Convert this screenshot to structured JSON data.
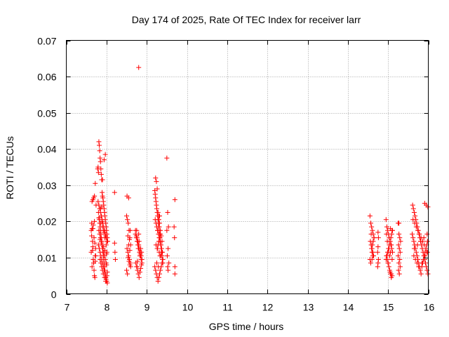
{
  "chart_data": {
    "type": "scatter",
    "title": "Day 174 of 2025, Rate Of TEC Index for receiver larr",
    "xlabel": "GPS time / hours",
    "ylabel": "ROTI / TECUs",
    "xlim": [
      7,
      16
    ],
    "ylim": [
      0,
      0.07
    ],
    "xticks": [
      7,
      8,
      9,
      10,
      11,
      12,
      13,
      14,
      15,
      16
    ],
    "xtick_labels": [
      "7",
      "8",
      "9",
      "10",
      "11",
      "12",
      "13",
      "14",
      "15",
      "16"
    ],
    "yticks": [
      0,
      0.01,
      0.02,
      0.03,
      0.04,
      0.05,
      0.06,
      0.07
    ],
    "ytick_labels": [
      "0",
      "0.01",
      "0.02",
      "0.03",
      "0.04",
      "0.05",
      "0.06",
      "0.07"
    ],
    "grid": true,
    "marker": "plus",
    "marker_color": "#ff0000",
    "series": [
      {
        "x": [
          7.62,
          7.63,
          7.64,
          7.65,
          7.66,
          7.67,
          7.68,
          7.69,
          7.7,
          7.71,
          7.72,
          7.73,
          7.64,
          7.66,
          7.68,
          7.7,
          7.72,
          7.74,
          7.62,
          7.65,
          7.67,
          7.69,
          7.71,
          7.73,
          7.63,
          7.66,
          7.7,
          7.64,
          7.68,
          7.72,
          7.78,
          7.79,
          7.8,
          7.81,
          7.82,
          7.83,
          7.84,
          7.85,
          7.86,
          7.87,
          7.88,
          7.89,
          7.9,
          7.91,
          7.92,
          7.93,
          7.94,
          7.95,
          7.96,
          7.97,
          7.98,
          7.99,
          8.0,
          8.01,
          8.02,
          8.03,
          7.8,
          7.81,
          7.82,
          7.83,
          7.84,
          7.85,
          7.86,
          7.87,
          7.88,
          7.89,
          7.9,
          7.91,
          7.92,
          7.93,
          7.94,
          7.95,
          7.96,
          7.97,
          7.98,
          7.99,
          8.0,
          8.01,
          8.02,
          7.79,
          7.81,
          7.83,
          7.85,
          7.87,
          7.89,
          7.91,
          7.93,
          7.95,
          7.97,
          7.99,
          8.01,
          7.8,
          7.82,
          7.84,
          7.86,
          7.88,
          7.9,
          7.92,
          7.94,
          7.96,
          7.98,
          8.0,
          8.02,
          7.81,
          7.83,
          7.85,
          7.87,
          7.89,
          7.91,
          7.93,
          7.95,
          7.97,
          7.99,
          7.82,
          7.86,
          7.9,
          7.94,
          7.98,
          7.84,
          7.88,
          7.92,
          7.96,
          8.0,
          7.84,
          7.86,
          7.88,
          7.9,
          7.92,
          7.95,
          7.98,
          8.0,
          7.85,
          7.87,
          7.89,
          7.93,
          7.96,
          7.99,
          8.01,
          7.88,
          7.9,
          7.94,
          7.97,
          8.2,
          8.2,
          8.21,
          8.22,
          8.5,
          8.52,
          8.54,
          8.56,
          8.58,
          8.6,
          8.51,
          8.53,
          8.55,
          8.57,
          8.59,
          8.6,
          8.5,
          8.52,
          8.54,
          8.56,
          8.58,
          8.51,
          8.55,
          8.59,
          8.53,
          8.57,
          8.55,
          8.58,
          8.72,
          8.74,
          8.76,
          8.78,
          8.8,
          8.82,
          8.84,
          8.86,
          8.88,
          8.73,
          8.75,
          8.77,
          8.79,
          8.81,
          8.83,
          8.85,
          8.87,
          8.72,
          8.74,
          8.76,
          8.78,
          8.8,
          8.82,
          8.84,
          8.86,
          8.88,
          8.75,
          8.79,
          8.83,
          8.87,
          8.77,
          8.81,
          8.85,
          8.76,
          8.8,
          8.84,
          8.8,
          9.2,
          9.21,
          9.22,
          9.23,
          9.24,
          9.25,
          9.26,
          9.27,
          9.28,
          9.29,
          9.3,
          9.31,
          9.32,
          9.33,
          9.34,
          9.35,
          9.36,
          9.37,
          9.38,
          9.39,
          9.4,
          9.2,
          9.22,
          9.24,
          9.26,
          9.28,
          9.3,
          9.32,
          9.34,
          9.36,
          9.38,
          9.4,
          9.21,
          9.23,
          9.25,
          9.27,
          9.29,
          9.31,
          9.33,
          9.35,
          9.37,
          9.39,
          9.22,
          9.24,
          9.26,
          9.28,
          9.3,
          9.32,
          9.34,
          9.36,
          9.38,
          9.23,
          9.27,
          9.31,
          9.35,
          9.39,
          9.25,
          9.29,
          9.33,
          9.37,
          9.26,
          9.28,
          9.3,
          9.32,
          9.34,
          9.27,
          9.31,
          9.29,
          9.3,
          9.32,
          9.5,
          9.52,
          9.54,
          9.5,
          9.53,
          9.51,
          9.55,
          9.52,
          9.53,
          9.7,
          9.68,
          9.69,
          9.7,
          9.7,
          14.55,
          14.57,
          14.59,
          14.61,
          14.63,
          14.65,
          14.56,
          14.58,
          14.6,
          14.62,
          14.64,
          14.55,
          14.57,
          14.59,
          14.61,
          14.63,
          14.65,
          14.58,
          14.6,
          14.62,
          14.6,
          14.75,
          14.76,
          14.75,
          14.74,
          14.76,
          14.75,
          14.74,
          14.95,
          14.97,
          14.99,
          15.01,
          15.03,
          15.05,
          15.07,
          15.09,
          15.11,
          14.96,
          14.98,
          15.0,
          15.02,
          15.04,
          15.06,
          15.08,
          15.1,
          14.95,
          14.97,
          14.99,
          15.01,
          15.03,
          15.05,
          15.07,
          15.09,
          15.11,
          14.96,
          15.0,
          15.04,
          15.08,
          14.98,
          15.02,
          15.06,
          15.1,
          15.0,
          15.04,
          15.08,
          15.06,
          15.1,
          15.02,
          15.05,
          15.25,
          15.27,
          15.29,
          15.31,
          15.26,
          15.28,
          15.3,
          15.25,
          15.29,
          15.27,
          15.3,
          15.26,
          15.28,
          15.27,
          15.6,
          15.62,
          15.64,
          15.66,
          15.68,
          15.7,
          15.72,
          15.74,
          15.76,
          15.78,
          15.8,
          15.82,
          15.84,
          15.86,
          15.88,
          15.9,
          15.92,
          15.94,
          15.96,
          15.98,
          15.61,
          15.63,
          15.65,
          15.67,
          15.69,
          15.71,
          15.73,
          15.75,
          15.77,
          15.79,
          15.81,
          15.83,
          15.85,
          15.87,
          15.89,
          15.91,
          15.93,
          15.95,
          15.97,
          15.99,
          15.62,
          15.66,
          15.7,
          15.74,
          15.78,
          15.82,
          15.86,
          15.9,
          15.94,
          15.98,
          15.64,
          15.68,
          15.72,
          15.76,
          15.8,
          15.84,
          15.88,
          15.92,
          15.96,
          15.65,
          15.73,
          15.81,
          15.89,
          15.97,
          15.91,
          15.95,
          15.99
        ],
        "y": [
          0.0175,
          0.016,
          0.018,
          0.0145,
          0.013,
          0.0095,
          0.0085,
          0.0065,
          0.005,
          0.0045,
          0.009,
          0.0105,
          0.0255,
          0.026,
          0.0265,
          0.027,
          0.0305,
          0.0245,
          0.0115,
          0.012,
          0.019,
          0.0155,
          0.014,
          0.0125,
          0.0195,
          0.018,
          0.02,
          0.0075,
          0.0085,
          0.0105,
          0.0345,
          0.035,
          0.0335,
          0.042,
          0.041,
          0.0395,
          0.0375,
          0.0365,
          0.0345,
          0.033,
          0.0315,
          0.028,
          0.027,
          0.0265,
          0.0255,
          0.0245,
          0.0235,
          0.0225,
          0.0215,
          0.0205,
          0.0195,
          0.0185,
          0.0175,
          0.0165,
          0.0155,
          0.0145,
          0.0225,
          0.021,
          0.0205,
          0.0195,
          0.0185,
          0.0175,
          0.0165,
          0.0155,
          0.0145,
          0.0135,
          0.0125,
          0.0115,
          0.0105,
          0.0095,
          0.0085,
          0.0075,
          0.0065,
          0.0055,
          0.0045,
          0.004,
          0.0035,
          0.005,
          0.006,
          0.0255,
          0.0245,
          0.0235,
          0.0225,
          0.0215,
          0.0205,
          0.0195,
          0.0185,
          0.0175,
          0.0165,
          0.0155,
          0.0145,
          0.0135,
          0.0125,
          0.0115,
          0.0105,
          0.0095,
          0.0085,
          0.0075,
          0.0065,
          0.0055,
          0.0045,
          0.0035,
          0.003,
          0.0175,
          0.0165,
          0.0155,
          0.0145,
          0.0135,
          0.0125,
          0.0115,
          0.0105,
          0.0095,
          0.0085,
          0.021,
          0.0195,
          0.0185,
          0.017,
          0.016,
          0.015,
          0.014,
          0.013,
          0.012,
          0.011,
          0.0095,
          0.0085,
          0.0075,
          0.0065,
          0.0055,
          0.0045,
          0.0035,
          0.008,
          0.0235,
          0.0215,
          0.02,
          0.0175,
          0.0155,
          0.0135,
          0.0115,
          0.024,
          0.0315,
          0.037,
          0.0385,
          0.028,
          0.014,
          0.0115,
          0.0095,
          0.0215,
          0.0205,
          0.0195,
          0.0175,
          0.0155,
          0.0135,
          0.0125,
          0.0115,
          0.0105,
          0.0095,
          0.0085,
          0.0075,
          0.0065,
          0.0055,
          0.01,
          0.009,
          0.008,
          0.027,
          0.0265,
          0.0175,
          0.016,
          0.015,
          0.0135,
          0.012,
          0.0175,
          0.016,
          0.0155,
          0.0145,
          0.0135,
          0.0125,
          0.0115,
          0.0105,
          0.0095,
          0.0085,
          0.0075,
          0.0065,
          0.0055,
          0.0045,
          0.006,
          0.007,
          0.008,
          0.0165,
          0.0155,
          0.0145,
          0.0135,
          0.0125,
          0.0115,
          0.0105,
          0.0095,
          0.0085,
          0.0175,
          0.0125,
          0.0105,
          0.0115,
          0.009,
          0.0145,
          0.0125,
          0.0075,
          0.0165,
          0.011,
          0.0625,
          0.0285,
          0.0275,
          0.0265,
          0.0255,
          0.0245,
          0.0235,
          0.0225,
          0.0215,
          0.0205,
          0.0195,
          0.0185,
          0.0175,
          0.0165,
          0.0155,
          0.0145,
          0.0135,
          0.0125,
          0.0115,
          0.0105,
          0.0095,
          0.0085,
          0.0075,
          0.0065,
          0.0055,
          0.0045,
          0.0035,
          0.0045,
          0.0055,
          0.0065,
          0.0075,
          0.0085,
          0.0095,
          0.0205,
          0.0195,
          0.0185,
          0.0175,
          0.0165,
          0.0155,
          0.0145,
          0.0135,
          0.0125,
          0.0115,
          0.032,
          0.031,
          0.029,
          0.0225,
          0.0215,
          0.0195,
          0.0175,
          0.016,
          0.0145,
          0.0135,
          0.0125,
          0.0115,
          0.0105,
          0.0095,
          0.0085,
          0.0075,
          0.0105,
          0.0115,
          0.0125,
          0.0135,
          0.0145,
          0.0155,
          0.0165,
          0.0175,
          0.0185,
          0.0195,
          0.0205,
          0.0215,
          0.0375,
          0.0225,
          0.0185,
          0.0175,
          0.0125,
          0.0105,
          0.0085,
          0.0075,
          0.0065,
          0.026,
          0.0185,
          0.0155,
          0.0075,
          0.0055,
          0.0215,
          0.0195,
          0.0185,
          0.0175,
          0.0165,
          0.0155,
          0.0145,
          0.0135,
          0.0125,
          0.0115,
          0.0105,
          0.0095,
          0.0085,
          0.0125,
          0.0135,
          0.0145,
          0.0155,
          0.0165,
          0.0115,
          0.0105,
          0.0095,
          0.017,
          0.0155,
          0.013,
          0.0115,
          0.0095,
          0.0085,
          0.0075,
          0.0205,
          0.0185,
          0.0175,
          0.0165,
          0.0155,
          0.0145,
          0.0135,
          0.0125,
          0.0115,
          0.0105,
          0.0095,
          0.0085,
          0.0075,
          0.0065,
          0.0055,
          0.0045,
          0.005,
          0.0095,
          0.0105,
          0.0115,
          0.0125,
          0.0135,
          0.0145,
          0.0155,
          0.0165,
          0.0175,
          0.0165,
          0.0115,
          0.0105,
          0.0135,
          0.0145,
          0.0125,
          0.0115,
          0.0095,
          0.0085,
          0.0065,
          0.0055,
          0.018,
          0.0175,
          0.0125,
          0.006,
          0.0195,
          0.0165,
          0.0155,
          0.0145,
          0.0135,
          0.0125,
          0.0115,
          0.0105,
          0.0095,
          0.0085,
          0.0075,
          0.0065,
          0.0055,
          0.0195,
          0.0165,
          0.0155,
          0.0145,
          0.0135,
          0.0125,
          0.0115,
          0.0105,
          0.0095,
          0.0085,
          0.0075,
          0.0065,
          0.0055,
          0.0075,
          0.0085,
          0.0095,
          0.0105,
          0.0115,
          0.0125,
          0.0135,
          0.0145,
          0.0245,
          0.0235,
          0.0225,
          0.0215,
          0.0205,
          0.0195,
          0.0185,
          0.0175,
          0.0165,
          0.0155,
          0.0145,
          0.0135,
          0.0125,
          0.0115,
          0.0105,
          0.0095,
          0.0085,
          0.0075,
          0.0065,
          0.0055,
          0.0205,
          0.0195,
          0.0185,
          0.0175,
          0.0165,
          0.0155,
          0.0145,
          0.0135,
          0.0125,
          0.0115,
          0.0105,
          0.0095,
          0.0085,
          0.0075,
          0.0065,
          0.0085,
          0.0095,
          0.0105,
          0.0115,
          0.0125,
          0.0135,
          0.0145,
          0.0155,
          0.0165,
          0.025,
          0.0245,
          0.024
        ]
      }
    ]
  }
}
